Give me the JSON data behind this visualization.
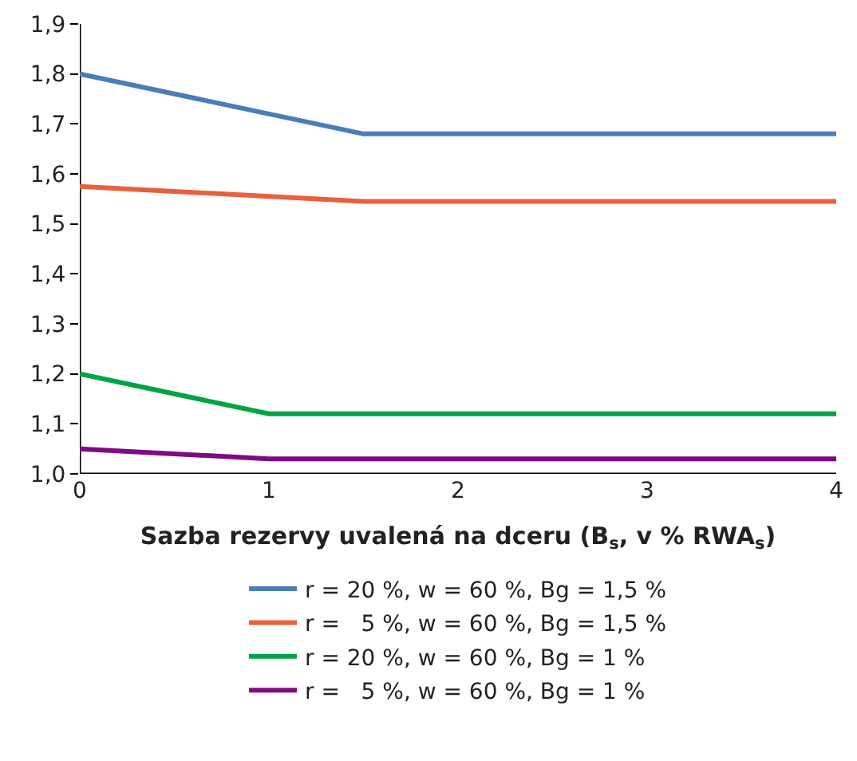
{
  "chart_data": {
    "type": "line",
    "xlabel": "Sazba rezervy uvalená na dceru (B$_{s}$, v % RWA$_{s}$)",
    "xlim": [
      0,
      4
    ],
    "xticks": [
      0,
      1,
      2,
      3,
      4
    ],
    "ylim": [
      1.0,
      1.9
    ],
    "yticks": [
      {
        "value": 1.0,
        "label": "1,0"
      },
      {
        "value": 1.1,
        "label": "1,1"
      },
      {
        "value": 1.2,
        "label": "1,2"
      },
      {
        "value": 1.3,
        "label": "1,3"
      },
      {
        "value": 1.4,
        "label": "1,4"
      },
      {
        "value": 1.5,
        "label": "1,5"
      },
      {
        "value": 1.6,
        "label": "1,6"
      },
      {
        "value": 1.7,
        "label": "1,7"
      },
      {
        "value": 1.8,
        "label": "1,8"
      },
      {
        "value": 1.9,
        "label": "1,9"
      }
    ],
    "grid": false,
    "legend": "bottom",
    "marker": "none",
    "line_style": "solid",
    "series": [
      {
        "name": "r = 20 %, w = 60 %, Bg = 1,5 %",
        "color": "#4a7ebb",
        "x": [
          0,
          1.5,
          4
        ],
        "values": [
          1.8,
          1.68,
          1.68
        ]
      },
      {
        "name": "r =   5 %, w = 60 %, Bg = 1,5 %",
        "color": "#e8613f",
        "x": [
          0,
          1.5,
          4
        ],
        "values": [
          1.575,
          1.545,
          1.545
        ]
      },
      {
        "name": "r = 20 %, w = 60 %, Bg = 1 %",
        "color": "#00a444",
        "x": [
          0,
          1,
          4
        ],
        "values": [
          1.2,
          1.12,
          1.12
        ]
      },
      {
        "name": "r =   5 %, w = 60 %, Bg = 1 %",
        "color": "#7f0a82",
        "x": [
          0,
          1,
          4
        ],
        "values": [
          1.05,
          1.03,
          1.03
        ]
      }
    ]
  }
}
